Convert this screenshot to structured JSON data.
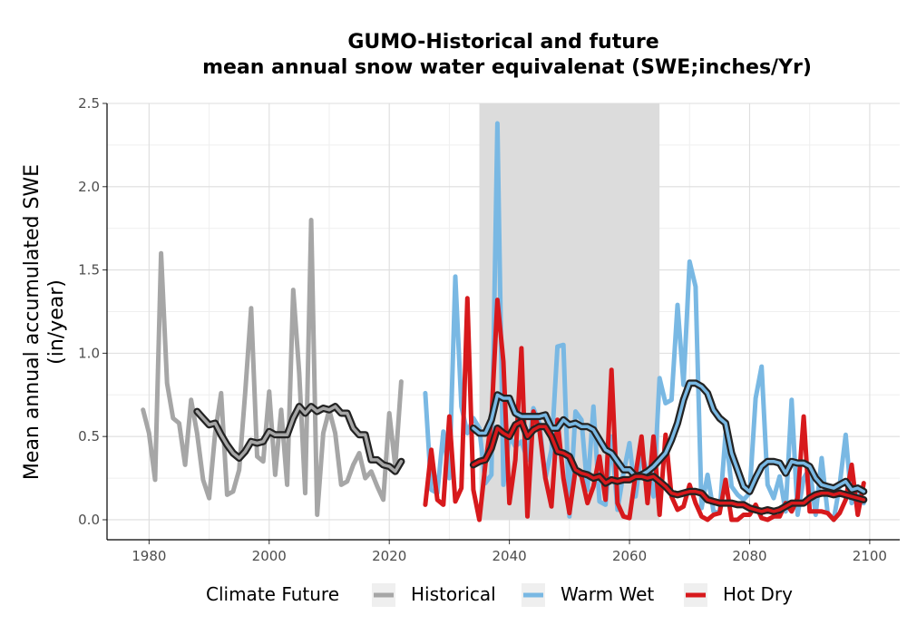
{
  "chart_data": {
    "type": "line",
    "title_line1": "GUMO-Historical and future",
    "title_line2": "mean annual snow water equivalenat (SWE;inches/Yr)",
    "xlabel": "",
    "ylabel_line1": "Mean annual accumulated SWE",
    "ylabel_line2": "(in/year)",
    "xlim": [
      1973,
      2105
    ],
    "ylim": [
      -0.12,
      2.5
    ],
    "x_ticks": [
      "1980",
      "2000",
      "2020",
      "2040",
      "2060",
      "2080",
      "2100"
    ],
    "y_ticks": [
      "0.0",
      "0.5",
      "1.0",
      "1.5",
      "2.0",
      "2.5"
    ],
    "grid": true,
    "shaded_period": [
      2035,
      2065
    ],
    "legend": {
      "title": "Climate Future",
      "position": "bottom",
      "items": [
        "Historical",
        "Warm Wet",
        "Hot Dry"
      ]
    },
    "series": [
      {
        "name": "Historical",
        "color": "#a6a6a6",
        "x": [
          1979,
          1980,
          1981,
          1982,
          1983,
          1984,
          1985,
          1986,
          1987,
          1988,
          1989,
          1990,
          1991,
          1992,
          1993,
          1994,
          1995,
          1996,
          1997,
          1998,
          1999,
          2000,
          2001,
          2002,
          2003,
          2004,
          2005,
          2006,
          2007,
          2008,
          2009,
          2010,
          2011,
          2012,
          2013,
          2014,
          2015,
          2016,
          2017,
          2018,
          2019,
          2020,
          2021,
          2022
        ],
        "y": [
          0.66,
          0.52,
          0.24,
          1.6,
          0.82,
          0.61,
          0.58,
          0.33,
          0.72,
          0.52,
          0.24,
          0.13,
          0.52,
          0.76,
          0.15,
          0.17,
          0.3,
          0.76,
          1.27,
          0.38,
          0.35,
          0.77,
          0.27,
          0.66,
          0.21,
          1.38,
          0.88,
          0.16,
          1.8,
          0.03,
          0.52,
          0.66,
          0.52,
          0.21,
          0.23,
          0.33,
          0.4,
          0.25,
          0.29,
          0.2,
          0.12,
          0.64,
          0.32,
          0.83
        ]
      },
      {
        "name": "Historical rolling mean",
        "color": "#222222",
        "x": [
          1988,
          1989,
          1990,
          1991,
          1992,
          1993,
          1994,
          1995,
          1996,
          1997,
          1998,
          1999,
          2000,
          2001,
          2002,
          2003,
          2004,
          2005,
          2006,
          2007,
          2008,
          2009,
          2010,
          2011,
          2012,
          2013,
          2014,
          2015,
          2016,
          2017,
          2018,
          2019,
          2020,
          2021,
          2022
        ],
        "y": [
          0.65,
          0.61,
          0.57,
          0.58,
          0.51,
          0.45,
          0.4,
          0.37,
          0.41,
          0.47,
          0.46,
          0.47,
          0.53,
          0.51,
          0.51,
          0.51,
          0.61,
          0.68,
          0.64,
          0.68,
          0.65,
          0.67,
          0.66,
          0.68,
          0.64,
          0.64,
          0.55,
          0.51,
          0.51,
          0.36,
          0.36,
          0.33,
          0.32,
          0.29,
          0.35
        ]
      },
      {
        "name": "Warm Wet",
        "color": "#79b8e3",
        "x": [
          2026,
          2027,
          2028,
          2029,
          2030,
          2031,
          2032,
          2033,
          2034,
          2035,
          2036,
          2037,
          2038,
          2039,
          2040,
          2041,
          2042,
          2043,
          2044,
          2045,
          2046,
          2047,
          2048,
          2049,
          2050,
          2051,
          2052,
          2053,
          2054,
          2055,
          2056,
          2057,
          2058,
          2059,
          2060,
          2061,
          2062,
          2063,
          2064,
          2065,
          2066,
          2067,
          2068,
          2069,
          2070,
          2071,
          2072,
          2073,
          2074,
          2075,
          2076,
          2077,
          2078,
          2079,
          2080,
          2081,
          2082,
          2083,
          2084,
          2085,
          2086,
          2087,
          2088,
          2089,
          2090,
          2091,
          2092,
          2093,
          2094,
          2095,
          2096,
          2097,
          2098,
          2099
        ],
        "y": [
          0.76,
          0.18,
          0.16,
          0.53,
          0.25,
          1.46,
          0.68,
          0.52,
          0.61,
          0.55,
          0.22,
          0.27,
          2.38,
          0.21,
          0.5,
          0.44,
          0.47,
          0.36,
          0.67,
          0.58,
          0.25,
          0.42,
          1.04,
          1.05,
          0.02,
          0.65,
          0.6,
          0.18,
          0.68,
          0.11,
          0.09,
          0.5,
          0.06,
          0.28,
          0.46,
          0.14,
          0.4,
          0.28,
          0.14,
          0.85,
          0.7,
          0.72,
          1.29,
          0.81,
          1.55,
          1.4,
          0.07,
          0.27,
          0.05,
          0.04,
          0.52,
          0.2,
          0.15,
          0.12,
          0.16,
          0.73,
          0.92,
          0.21,
          0.13,
          0.26,
          0.05,
          0.72,
          0.03,
          0.25,
          0.31,
          0.03,
          0.37,
          0.04,
          0.0,
          0.21,
          0.51,
          0.1,
          0.2,
          0.1
        ]
      },
      {
        "name": "Warm Wet rolling mean",
        "color": "#222222",
        "x": [
          2034,
          2035,
          2036,
          2037,
          2038,
          2039,
          2040,
          2041,
          2042,
          2043,
          2044,
          2045,
          2046,
          2047,
          2048,
          2049,
          2050,
          2051,
          2052,
          2053,
          2054,
          2055,
          2056,
          2057,
          2058,
          2059,
          2060,
          2061,
          2062,
          2063,
          2064,
          2065,
          2066,
          2067,
          2068,
          2069,
          2070,
          2071,
          2072,
          2073,
          2074,
          2075,
          2076,
          2077,
          2078,
          2079,
          2080,
          2081,
          2082,
          2083,
          2084,
          2085,
          2086,
          2087,
          2088,
          2089,
          2090,
          2091,
          2092,
          2093,
          2094,
          2095,
          2096,
          2097,
          2098,
          2099
        ],
        "y": [
          0.55,
          0.52,
          0.52,
          0.6,
          0.75,
          0.73,
          0.73,
          0.64,
          0.62,
          0.62,
          0.62,
          0.62,
          0.63,
          0.55,
          0.55,
          0.6,
          0.57,
          0.58,
          0.56,
          0.56,
          0.54,
          0.48,
          0.42,
          0.4,
          0.35,
          0.3,
          0.3,
          0.26,
          0.27,
          0.29,
          0.32,
          0.36,
          0.4,
          0.48,
          0.58,
          0.72,
          0.82,
          0.82,
          0.8,
          0.76,
          0.66,
          0.61,
          0.58,
          0.4,
          0.3,
          0.2,
          0.17,
          0.25,
          0.32,
          0.35,
          0.35,
          0.34,
          0.28,
          0.35,
          0.34,
          0.34,
          0.32,
          0.25,
          0.21,
          0.2,
          0.19,
          0.21,
          0.23,
          0.18,
          0.19,
          0.17
        ]
      },
      {
        "name": "Hot Dry",
        "color": "#d7191c",
        "x": [
          2026,
          2027,
          2028,
          2029,
          2030,
          2031,
          2032,
          2033,
          2034,
          2035,
          2036,
          2037,
          2038,
          2039,
          2040,
          2041,
          2042,
          2043,
          2044,
          2045,
          2046,
          2047,
          2048,
          2049,
          2050,
          2051,
          2052,
          2053,
          2054,
          2055,
          2056,
          2057,
          2058,
          2059,
          2060,
          2061,
          2062,
          2063,
          2064,
          2065,
          2066,
          2067,
          2068,
          2069,
          2070,
          2071,
          2072,
          2073,
          2074,
          2075,
          2076,
          2077,
          2078,
          2079,
          2080,
          2081,
          2082,
          2083,
          2084,
          2085,
          2086,
          2087,
          2088,
          2089,
          2090,
          2091,
          2092,
          2093,
          2094,
          2095,
          2096,
          2097,
          2098,
          2099
        ],
        "y": [
          0.09,
          0.42,
          0.12,
          0.09,
          0.62,
          0.11,
          0.19,
          1.33,
          0.18,
          0.0,
          0.33,
          0.6,
          1.32,
          0.95,
          0.1,
          0.36,
          1.03,
          0.02,
          0.65,
          0.54,
          0.25,
          0.08,
          0.6,
          0.25,
          0.04,
          0.3,
          0.26,
          0.1,
          0.2,
          0.38,
          0.12,
          0.9,
          0.1,
          0.02,
          0.01,
          0.27,
          0.5,
          0.1,
          0.5,
          0.03,
          0.51,
          0.14,
          0.06,
          0.08,
          0.21,
          0.1,
          0.02,
          0.0,
          0.03,
          0.04,
          0.24,
          0.0,
          0.0,
          0.03,
          0.03,
          0.09,
          0.01,
          0.0,
          0.02,
          0.02,
          0.1,
          0.05,
          0.13,
          0.62,
          0.05,
          0.05,
          0.05,
          0.04,
          0.0,
          0.04,
          0.12,
          0.33,
          0.03,
          0.22
        ]
      },
      {
        "name": "Hot Dry rolling mean",
        "color": "#222222",
        "x": [
          2034,
          2035,
          2036,
          2037,
          2038,
          2039,
          2040,
          2041,
          2042,
          2043,
          2044,
          2045,
          2046,
          2047,
          2048,
          2049,
          2050,
          2051,
          2052,
          2053,
          2054,
          2055,
          2056,
          2057,
          2058,
          2059,
          2060,
          2061,
          2062,
          2063,
          2064,
          2065,
          2066,
          2067,
          2068,
          2069,
          2070,
          2071,
          2072,
          2073,
          2074,
          2075,
          2076,
          2077,
          2078,
          2079,
          2080,
          2081,
          2082,
          2083,
          2084,
          2085,
          2086,
          2087,
          2088,
          2089,
          2090,
          2091,
          2092,
          2093,
          2094,
          2095,
          2096,
          2097,
          2098,
          2099
        ],
        "y": [
          0.33,
          0.35,
          0.36,
          0.43,
          0.55,
          0.52,
          0.5,
          0.57,
          0.59,
          0.5,
          0.54,
          0.56,
          0.56,
          0.5,
          0.41,
          0.4,
          0.38,
          0.3,
          0.28,
          0.27,
          0.25,
          0.26,
          0.22,
          0.24,
          0.23,
          0.24,
          0.24,
          0.26,
          0.26,
          0.25,
          0.26,
          0.23,
          0.2,
          0.16,
          0.15,
          0.16,
          0.17,
          0.17,
          0.16,
          0.12,
          0.11,
          0.1,
          0.1,
          0.1,
          0.09,
          0.09,
          0.07,
          0.06,
          0.05,
          0.06,
          0.05,
          0.06,
          0.08,
          0.1,
          0.1,
          0.1,
          0.13,
          0.15,
          0.16,
          0.16,
          0.15,
          0.16,
          0.15,
          0.14,
          0.13,
          0.12
        ]
      }
    ]
  }
}
